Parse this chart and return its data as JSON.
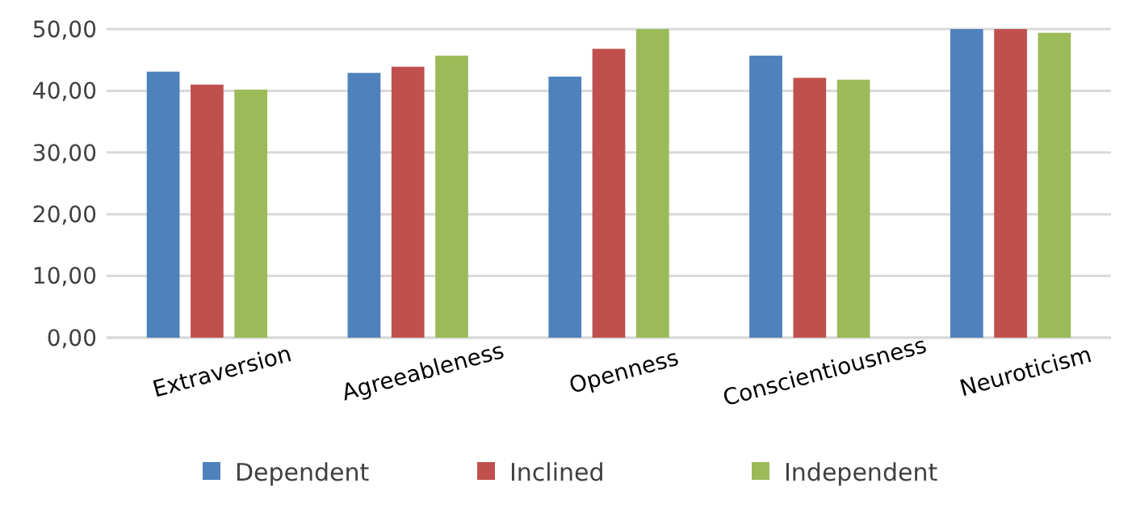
{
  "chart_data": {
    "type": "bar",
    "categories": [
      "Extraversion",
      "Agreeableness",
      "Openness",
      "Conscientiousness",
      "Neuroticism"
    ],
    "series": [
      {
        "name": "Dependent",
        "color": "#4f81bd",
        "values": [
          43.1,
          42.9,
          42.3,
          45.7,
          50
        ]
      },
      {
        "name": "Inclined",
        "color": "#c0504d",
        "values": [
          41.0,
          43.9,
          46.8,
          42.1,
          50
        ]
      },
      {
        "name": "Independent",
        "color": "#9bbb59",
        "values": [
          40.2,
          45.7,
          50,
          41.8,
          49.4
        ]
      }
    ],
    "ylim": [
      0,
      50
    ],
    "yticks": [
      {
        "value": 0,
        "label": "0,00"
      },
      {
        "value": 10,
        "label": "10,00"
      },
      {
        "value": 20,
        "label": "20,00"
      },
      {
        "value": 30,
        "label": "30,00"
      },
      {
        "value": 40,
        "label": "40,00"
      },
      {
        "value": 50,
        "label": "50,00"
      }
    ],
    "grid": "y",
    "legend": "bottom"
  }
}
